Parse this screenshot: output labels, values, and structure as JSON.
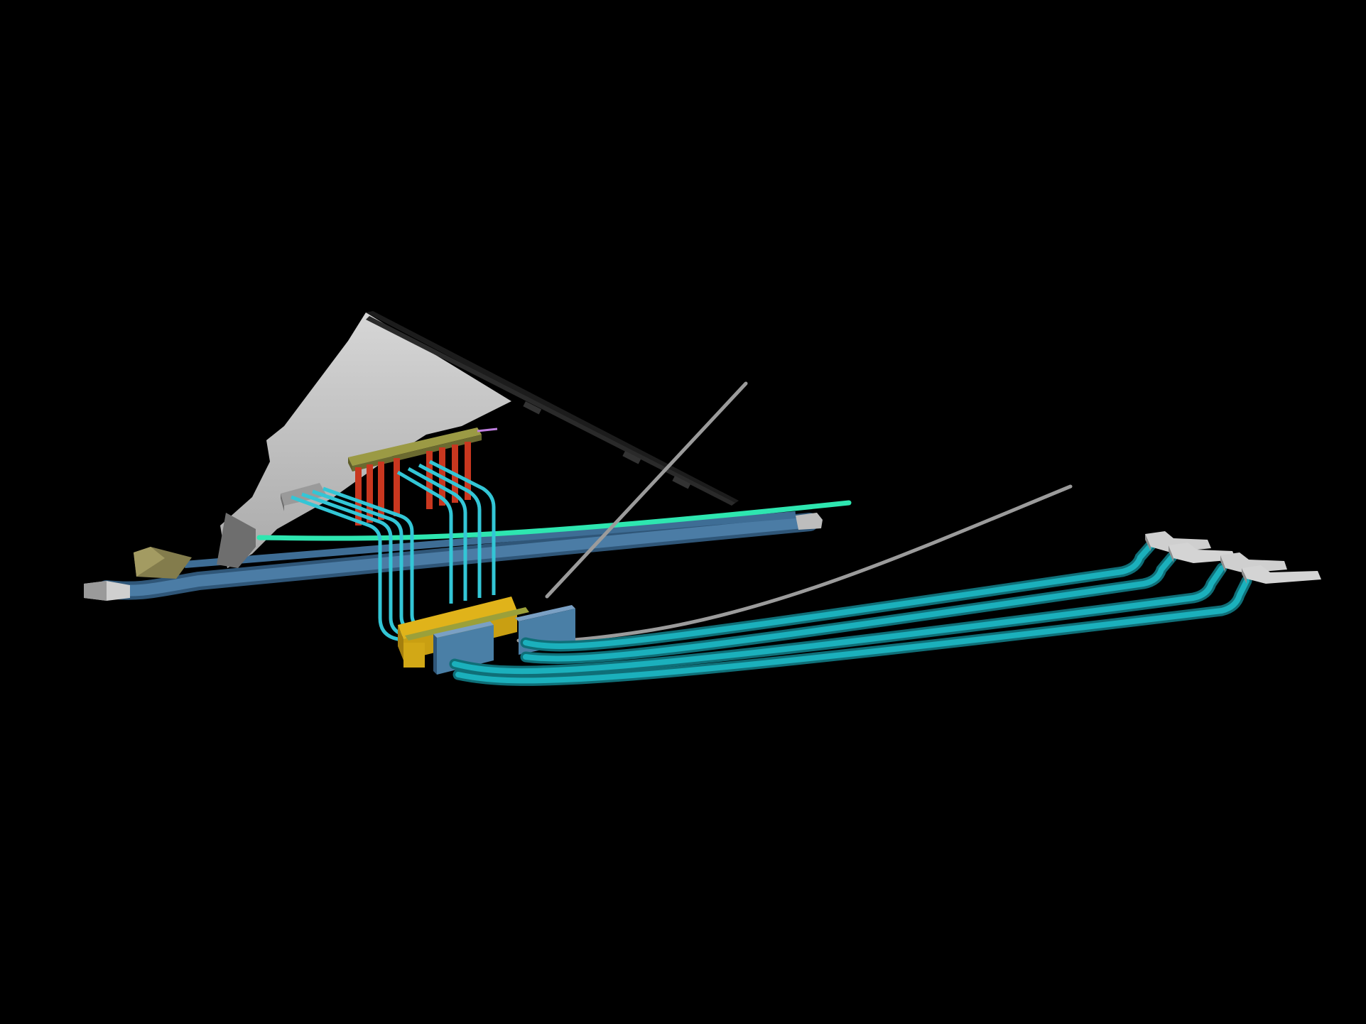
{
  "scene": {
    "kind": "3d-schematic-render",
    "background": "#000000",
    "colors": {
      "structure_face": "#c0c0c0",
      "structure_shadow": "#6e6e6e",
      "structure_top_edge": "#1a1a1a",
      "intake_gallery": "#7d7a32",
      "penstock_shaft": "#c9371f",
      "penstock_tunnel": "#33c6d6",
      "powerhouse_cavern": "#d2a816",
      "transformer_cavern": "#4a7fa6",
      "tailrace_tunnel": "#169aa6",
      "diversion_tunnel": "#3e6d95",
      "access_tunnel_light": "#2ee6b0",
      "access_tunnel_grey": "#9b9b9b",
      "portal": "#c8c8c8"
    },
    "component_counts": {
      "penstock_shafts": 8,
      "penstock_tunnels": 8,
      "tailrace_tunnels": 4,
      "outlet_portals": 4
    }
  }
}
